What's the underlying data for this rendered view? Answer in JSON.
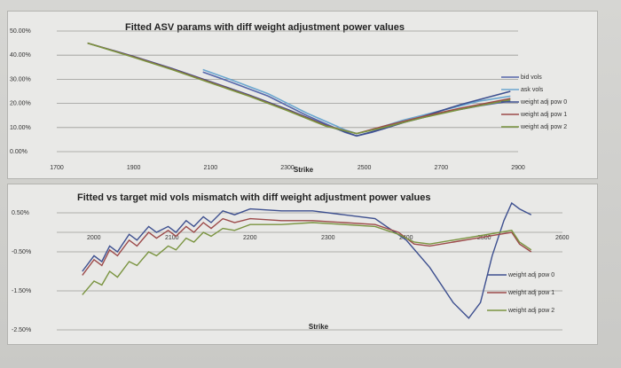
{
  "chart_data": [
    {
      "type": "line",
      "title": "Fitted ASV params with diff weight adjustment power values",
      "xlabel": "Strike",
      "ylabel": "",
      "xlim": [
        1700,
        2900
      ],
      "ylim": [
        0,
        50
      ],
      "x_ticks": [
        "1700",
        "1900",
        "2100",
        "2300",
        "2500",
        "2700",
        "2900"
      ],
      "y_ticks": [
        "0.00%",
        "10.00%",
        "20.00%",
        "30.00%",
        "40.00%",
        "50.00%"
      ],
      "grid": true,
      "legend_position": "right",
      "series": [
        {
          "name": "bid vols",
          "color": "#5566aa",
          "points": [
            [
              2080,
              33
            ],
            [
              2150,
              29
            ],
            [
              2250,
              23
            ],
            [
              2350,
              15
            ],
            [
              2450,
              8
            ],
            [
              2480,
              6.5
            ],
            [
              2520,
              8
            ],
            [
              2600,
              12
            ],
            [
              2700,
              16
            ],
            [
              2800,
              19
            ],
            [
              2880,
              21
            ]
          ]
        },
        {
          "name": "ask vols",
          "color": "#6aa6cf",
          "points": [
            [
              2080,
              34
            ],
            [
              2150,
              30
            ],
            [
              2250,
              24
            ],
            [
              2350,
              16
            ],
            [
              2450,
              9
            ],
            [
              2480,
              7.5
            ],
            [
              2520,
              9
            ],
            [
              2600,
              13
            ],
            [
              2700,
              17
            ],
            [
              2800,
              21
            ],
            [
              2880,
              23
            ]
          ]
        },
        {
          "name": "weight adj pow 0",
          "color": "#3d4f8f",
          "points": [
            [
              1780,
              45
            ],
            [
              1900,
              39.5
            ],
            [
              2000,
              34.5
            ],
            [
              2100,
              29
            ],
            [
              2200,
              23.5
            ],
            [
              2300,
              17.5
            ],
            [
              2400,
              11
            ],
            [
              2480,
              6.5
            ],
            [
              2550,
              9.5
            ],
            [
              2650,
              14.5
            ],
            [
              2750,
              19.5
            ],
            [
              2880,
              25
            ]
          ]
        },
        {
          "name": "weight adj pow 1",
          "color": "#9c4a4a",
          "points": [
            [
              1780,
              45
            ],
            [
              1900,
              39.3
            ],
            [
              2000,
              34.2
            ],
            [
              2100,
              28.7
            ],
            [
              2200,
              23.2
            ],
            [
              2300,
              17.2
            ],
            [
              2400,
              10.8
            ],
            [
              2480,
              7.5
            ],
            [
              2550,
              10.5
            ],
            [
              2650,
              14.5
            ],
            [
              2750,
              18
            ],
            [
              2880,
              22
            ]
          ]
        },
        {
          "name": "weight adj pow 2",
          "color": "#7a9440",
          "points": [
            [
              1780,
              45
            ],
            [
              1900,
              39.1
            ],
            [
              2000,
              34
            ],
            [
              2100,
              28.5
            ],
            [
              2200,
              23
            ],
            [
              2300,
              17
            ],
            [
              2400,
              10.6
            ],
            [
              2480,
              7.5
            ],
            [
              2550,
              10
            ],
            [
              2650,
              14
            ],
            [
              2750,
              17.5
            ],
            [
              2880,
              21.5
            ]
          ]
        }
      ]
    },
    {
      "type": "line",
      "title": "Fitted vs target mid vols mismatch with diff weight adjustment power values",
      "xlabel": "Strike",
      "ylabel": "",
      "xlim": [
        2000,
        2600
      ],
      "ylim": [
        -2.5,
        0.75
      ],
      "x_ticks": [
        "2000",
        "2100",
        "2200",
        "2300",
        "2400",
        "2500",
        "2600"
      ],
      "y_ticks": [
        "0.50%",
        "-0.50%",
        "-1.50%",
        "-2.50%"
      ],
      "grid": true,
      "legend_position": "right",
      "series": [
        {
          "name": "weight adj pow 0",
          "color": "#3d4f8f",
          "points": [
            [
              1985,
              -1.0
            ],
            [
              2000,
              -0.6
            ],
            [
              2010,
              -0.75
            ],
            [
              2020,
              -0.35
            ],
            [
              2030,
              -0.5
            ],
            [
              2045,
              -0.05
            ],
            [
              2055,
              -0.2
            ],
            [
              2070,
              0.15
            ],
            [
              2080,
              0.0
            ],
            [
              2095,
              0.15
            ],
            [
              2105,
              0.0
            ],
            [
              2118,
              0.3
            ],
            [
              2128,
              0.15
            ],
            [
              2140,
              0.4
            ],
            [
              2150,
              0.25
            ],
            [
              2165,
              0.55
            ],
            [
              2180,
              0.45
            ],
            [
              2200,
              0.6
            ],
            [
              2240,
              0.55
            ],
            [
              2280,
              0.55
            ],
            [
              2320,
              0.45
            ],
            [
              2360,
              0.35
            ],
            [
              2400,
              -0.2
            ],
            [
              2430,
              -0.9
            ],
            [
              2460,
              -1.8
            ],
            [
              2480,
              -2.2
            ],
            [
              2495,
              -1.8
            ],
            [
              2510,
              -0.6
            ],
            [
              2525,
              0.3
            ],
            [
              2535,
              0.75
            ],
            [
              2545,
              0.6
            ],
            [
              2560,
              0.45
            ]
          ]
        },
        {
          "name": "weight adj pow 1",
          "color": "#9c4a4a",
          "points": [
            [
              1985,
              -1.1
            ],
            [
              2000,
              -0.7
            ],
            [
              2010,
              -0.85
            ],
            [
              2020,
              -0.45
            ],
            [
              2030,
              -0.6
            ],
            [
              2045,
              -0.2
            ],
            [
              2055,
              -0.35
            ],
            [
              2070,
              0.0
            ],
            [
              2080,
              -0.15
            ],
            [
              2095,
              0.05
            ],
            [
              2105,
              -0.1
            ],
            [
              2118,
              0.15
            ],
            [
              2128,
              0.0
            ],
            [
              2140,
              0.25
            ],
            [
              2150,
              0.1
            ],
            [
              2165,
              0.35
            ],
            [
              2180,
              0.25
            ],
            [
              2200,
              0.35
            ],
            [
              2240,
              0.3
            ],
            [
              2280,
              0.3
            ],
            [
              2320,
              0.25
            ],
            [
              2360,
              0.2
            ],
            [
              2390,
              0.0
            ],
            [
              2410,
              -0.3
            ],
            [
              2430,
              -0.35
            ],
            [
              2460,
              -0.25
            ],
            [
              2490,
              -0.15
            ],
            [
              2520,
              -0.05
            ],
            [
              2535,
              0.0
            ],
            [
              2545,
              -0.3
            ],
            [
              2560,
              -0.5
            ]
          ]
        },
        {
          "name": "weight adj pow 2",
          "color": "#7a9440",
          "points": [
            [
              1985,
              -1.6
            ],
            [
              2000,
              -1.25
            ],
            [
              2010,
              -1.35
            ],
            [
              2020,
              -1.0
            ],
            [
              2030,
              -1.15
            ],
            [
              2045,
              -0.75
            ],
            [
              2055,
              -0.85
            ],
            [
              2070,
              -0.5
            ],
            [
              2080,
              -0.6
            ],
            [
              2095,
              -0.35
            ],
            [
              2105,
              -0.45
            ],
            [
              2118,
              -0.15
            ],
            [
              2128,
              -0.25
            ],
            [
              2140,
              0.0
            ],
            [
              2150,
              -0.1
            ],
            [
              2165,
              0.1
            ],
            [
              2180,
              0.05
            ],
            [
              2200,
              0.2
            ],
            [
              2240,
              0.2
            ],
            [
              2280,
              0.25
            ],
            [
              2320,
              0.2
            ],
            [
              2360,
              0.15
            ],
            [
              2390,
              -0.05
            ],
            [
              2410,
              -0.25
            ],
            [
              2430,
              -0.3
            ],
            [
              2460,
              -0.2
            ],
            [
              2490,
              -0.1
            ],
            [
              2520,
              0.0
            ],
            [
              2535,
              0.05
            ],
            [
              2545,
              -0.25
            ],
            [
              2560,
              -0.45
            ]
          ]
        }
      ]
    }
  ]
}
